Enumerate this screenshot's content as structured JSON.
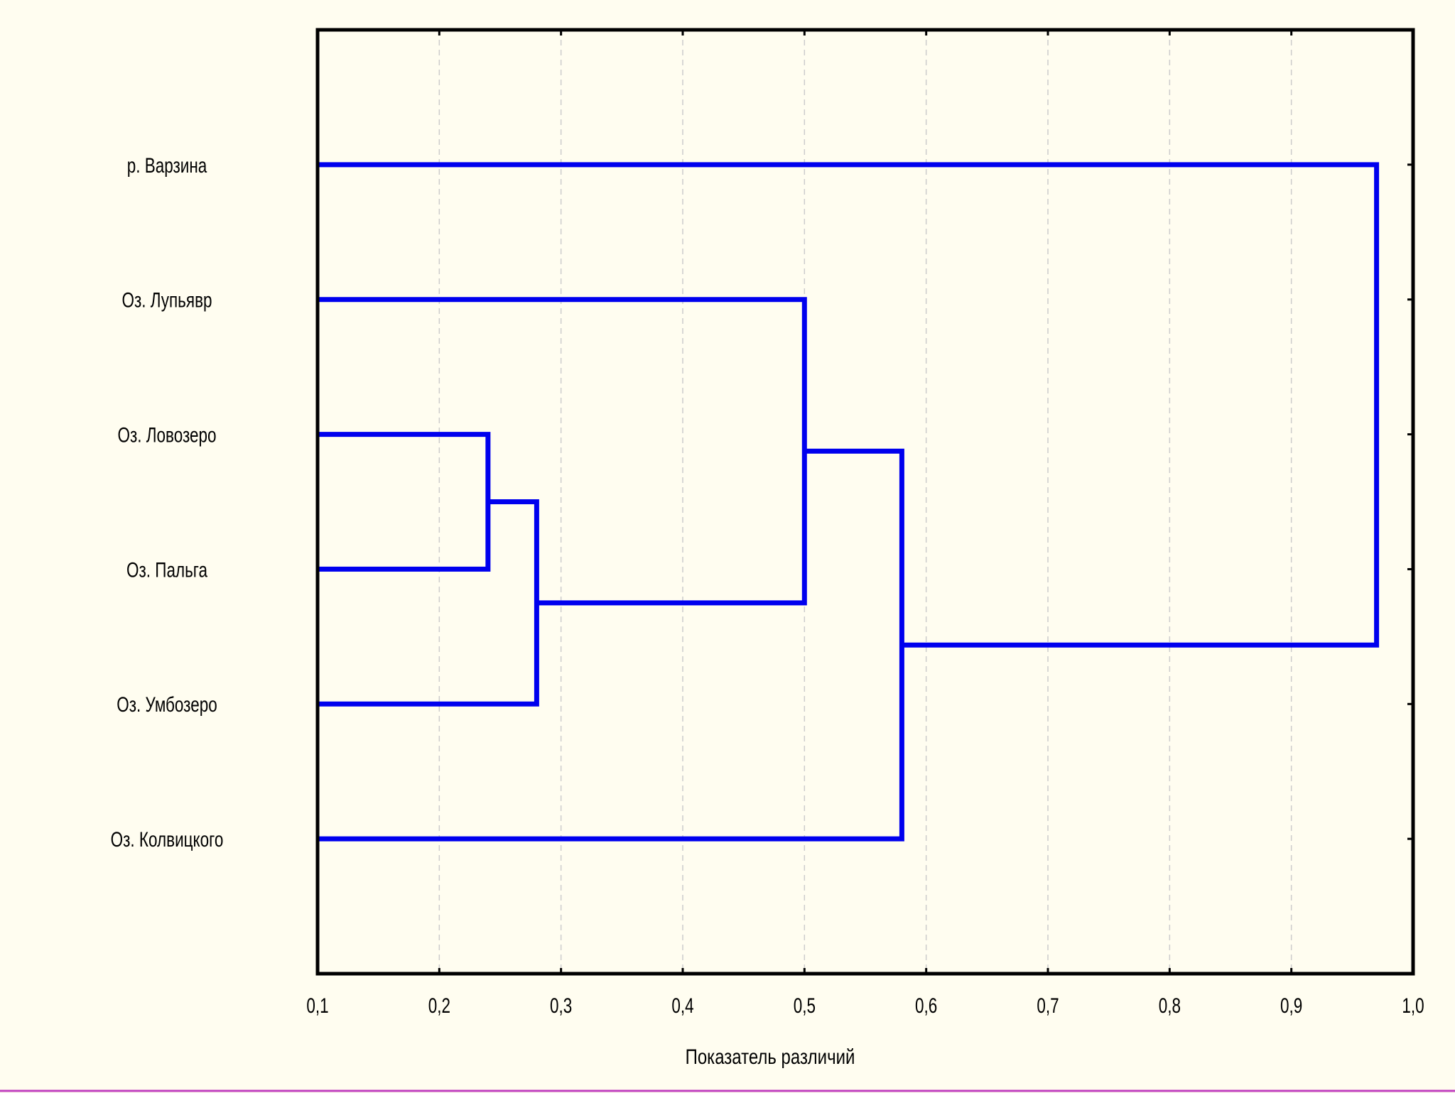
{
  "chart_data": {
    "type": "dendrogram",
    "x_label": "Показатель различий",
    "leaves": [
      "р. Варзина",
      "Оз. Лупьявр",
      "Оз. Ловозеро",
      "Оз. Пальга",
      "Оз. Умбозеро",
      "Оз. Колвицкого"
    ],
    "merges": [
      {
        "left": 2,
        "right": 3,
        "height": 0.24
      },
      {
        "left": 6,
        "right": 4,
        "height": 0.28
      },
      {
        "left": 1,
        "right": 7,
        "height": 0.5
      },
      {
        "left": 8,
        "right": 5,
        "height": 0.58
      },
      {
        "left": 0,
        "right": 9,
        "height": 0.97
      }
    ],
    "color": "#0000ee",
    "xlim": [
      0.1,
      1.0
    ],
    "xticks": [
      {
        "value": 0.1,
        "label": "0,1"
      },
      {
        "value": 0.2,
        "label": "0,2"
      },
      {
        "value": 0.3,
        "label": "0,3"
      },
      {
        "value": 0.4,
        "label": "0,4"
      },
      {
        "value": 0.5,
        "label": "0,5"
      },
      {
        "value": 0.6,
        "label": "0,6"
      },
      {
        "value": 0.7,
        "label": "0,7"
      },
      {
        "value": 0.8,
        "label": "0,8"
      },
      {
        "value": 0.9,
        "label": "0,9"
      },
      {
        "value": 1.0,
        "label": "1,0"
      }
    ],
    "grid": true
  }
}
